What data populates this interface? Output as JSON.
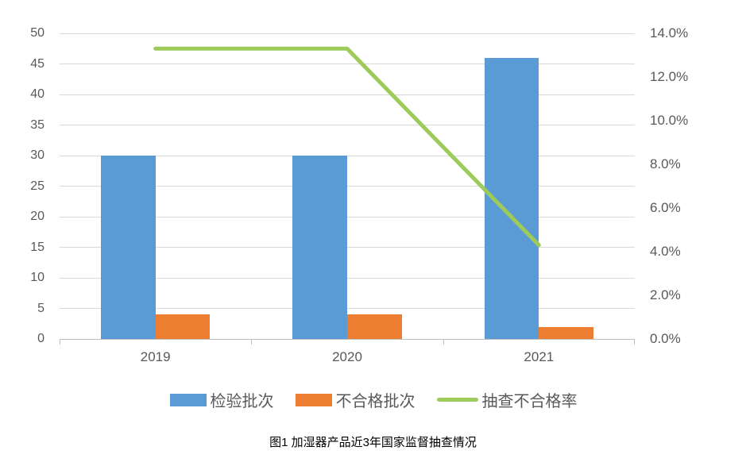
{
  "figure": {
    "caption": "图1 加湿器产品近3年国家监督抽查情况"
  },
  "chart_data": {
    "type": "combo-bar-line",
    "title": "",
    "categories": [
      "2019",
      "2020",
      "2021"
    ],
    "series": [
      {
        "key": "inspection-batches",
        "name": "检验批次",
        "type": "bar",
        "axis": "left",
        "color": "#5B9BD5",
        "values": [
          30,
          30,
          46
        ]
      },
      {
        "key": "failed-batches",
        "name": "不合格批次",
        "type": "bar",
        "axis": "left",
        "color": "#ED7D31",
        "values": [
          4,
          4,
          2
        ]
      },
      {
        "key": "failure-rate",
        "name": "抽查不合格率",
        "type": "line",
        "axis": "right",
        "color": "#9CCB5A",
        "values": [
          13.3,
          13.3,
          4.3
        ],
        "unit": "%"
      }
    ],
    "left_axis": {
      "min": 0,
      "max": 50,
      "step": 5,
      "tick_labels": [
        "0",
        "5",
        "10",
        "15",
        "20",
        "25",
        "30",
        "35",
        "40",
        "45",
        "50"
      ]
    },
    "right_axis": {
      "min": 0,
      "max": 14,
      "step": 2,
      "tick_labels": [
        "0.0%",
        "2.0%",
        "4.0%",
        "6.0%",
        "8.0%",
        "10.0%",
        "12.0%",
        "14.0%"
      ]
    },
    "grid": true,
    "legend_position": "bottom",
    "colors": {
      "gridline": "#D9D9D9",
      "axis_line": "#BFBFBF",
      "tick_mark": "#BFBFBF",
      "tick_text": "#595959",
      "legend_text": "#595959",
      "caption_text": "#000000",
      "background": "#FFFFFF"
    }
  }
}
